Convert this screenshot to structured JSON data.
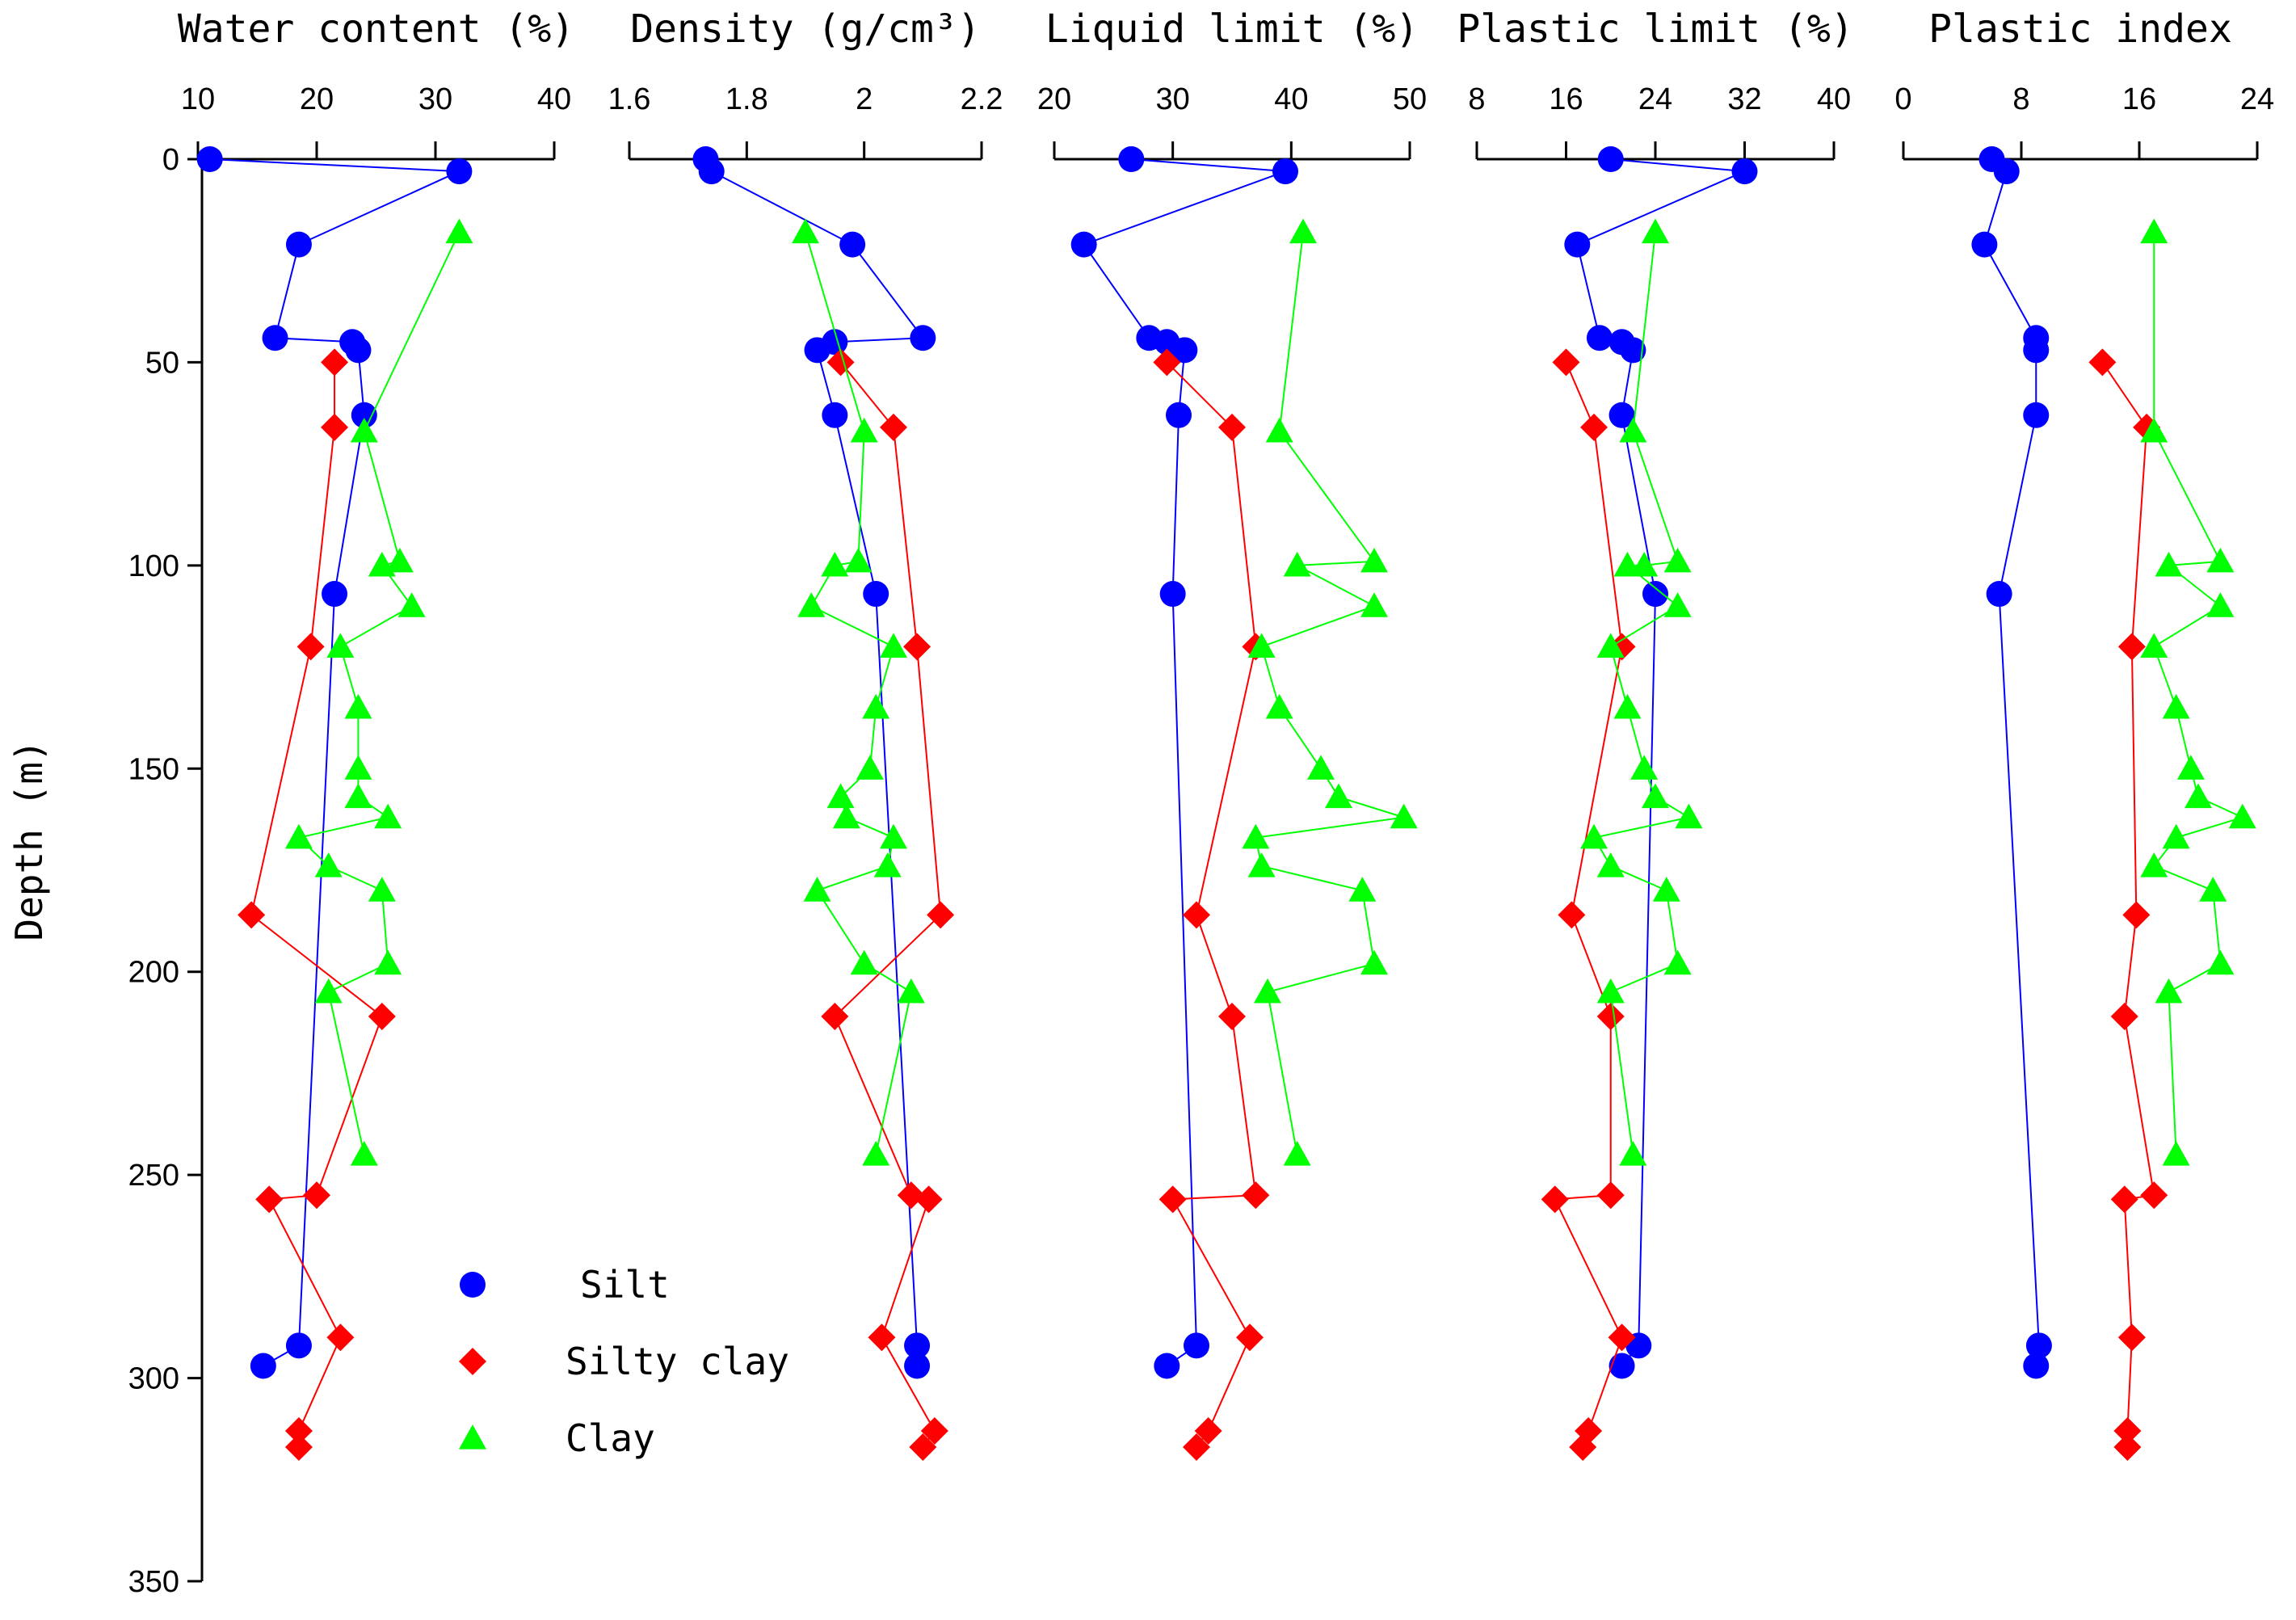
{
  "chart_data": {
    "type": "scatter",
    "layout": "multi-panel profile (shared depth axis)",
    "ylabel": "Depth (m)",
    "ylim": [
      0,
      350
    ],
    "yticks": [
      0,
      50,
      100,
      150,
      200,
      250,
      300,
      350
    ],
    "y_inverted": true,
    "legend": {
      "placement": "bottom-left of first panel",
      "entries": [
        {
          "name": "Silt",
          "marker": "circle",
          "color": "#0000ff"
        },
        {
          "name": "Silty clay",
          "marker": "diamond",
          "color": "#ff0000"
        },
        {
          "name": "Clay",
          "marker": "triangle",
          "color": "#00ff00"
        }
      ]
    },
    "panels": [
      {
        "title": "Water content (%)",
        "xlim": [
          10,
          40
        ],
        "xticks": [
          "10",
          "20",
          "30",
          "40"
        ],
        "series": [
          {
            "name": "Silt",
            "points": [
              [
                11,
                0
              ],
              [
                32,
                3
              ],
              [
                18.5,
                21
              ],
              [
                16.5,
                44
              ],
              [
                23,
                45
              ],
              [
                23.5,
                47
              ],
              [
                24,
                63
              ],
              [
                21.5,
                107
              ],
              [
                18.5,
                292
              ],
              [
                15.5,
                297
              ]
            ]
          },
          {
            "name": "Silty clay",
            "points": [
              [
                21.5,
                50
              ],
              [
                21.5,
                66
              ],
              [
                19.5,
                120
              ],
              [
                14.5,
                186
              ],
              [
                25.5,
                211
              ],
              [
                20,
                255
              ],
              [
                16,
                256
              ],
              [
                22,
                290
              ],
              [
                18.5,
                313
              ],
              [
                18.5,
                317
              ]
            ]
          },
          {
            "name": "Clay",
            "points": [
              [
                32,
                18
              ],
              [
                24,
                67
              ],
              [
                27,
                99
              ],
              [
                25.5,
                100
              ],
              [
                28,
                110
              ],
              [
                22,
                120
              ],
              [
                23.5,
                135
              ],
              [
                23.5,
                150
              ],
              [
                23.5,
                157
              ],
              [
                26,
                162
              ],
              [
                18.5,
                167
              ],
              [
                21,
                174
              ],
              [
                25.5,
                180
              ],
              [
                26,
                198
              ],
              [
                21,
                205
              ],
              [
                24,
                245
              ]
            ]
          }
        ]
      },
      {
        "title": "Density (g/cm³)",
        "xlim": [
          1.6,
          2.2
        ],
        "xticks": [
          "1.6",
          "1.8",
          "2",
          "2.2"
        ],
        "series": [
          {
            "name": "Silt",
            "points": [
              [
                1.73,
                0
              ],
              [
                1.74,
                3
              ],
              [
                1.98,
                21
              ],
              [
                2.1,
                44
              ],
              [
                1.95,
                45
              ],
              [
                1.92,
                47
              ],
              [
                1.95,
                63
              ],
              [
                2.02,
                107
              ],
              [
                2.09,
                292
              ],
              [
                2.09,
                297
              ]
            ]
          },
          {
            "name": "Silty clay",
            "points": [
              [
                1.96,
                50
              ],
              [
                2.05,
                66
              ],
              [
                2.09,
                120
              ],
              [
                2.13,
                186
              ],
              [
                1.95,
                211
              ],
              [
                2.08,
                255
              ],
              [
                2.11,
                256
              ],
              [
                2.03,
                290
              ],
              [
                2.12,
                313
              ],
              [
                2.1,
                317
              ]
            ]
          },
          {
            "name": "Clay",
            "points": [
              [
                1.9,
                18
              ],
              [
                2,
                67
              ],
              [
                1.99,
                99
              ],
              [
                1.95,
                100
              ],
              [
                1.91,
                110
              ],
              [
                2.05,
                120
              ],
              [
                2.02,
                135
              ],
              [
                2.01,
                150
              ],
              [
                1.96,
                157
              ],
              [
                1.97,
                162
              ],
              [
                2.05,
                167
              ],
              [
                2.04,
                174
              ],
              [
                1.92,
                180
              ],
              [
                2,
                198
              ],
              [
                2.08,
                205
              ],
              [
                2.02,
                245
              ]
            ]
          }
        ]
      },
      {
        "title": "Liquid limit (%)",
        "xlim": [
          20,
          50
        ],
        "xticks": [
          "20",
          "30",
          "40",
          "50"
        ],
        "series": [
          {
            "name": "Silt",
            "points": [
              [
                26.5,
                0
              ],
              [
                39.5,
                3
              ],
              [
                22.5,
                21
              ],
              [
                28,
                44
              ],
              [
                29.5,
                45
              ],
              [
                31,
                47
              ],
              [
                30.5,
                63
              ],
              [
                30,
                107
              ],
              [
                32,
                292
              ],
              [
                29.5,
                297
              ]
            ]
          },
          {
            "name": "Silty clay",
            "points": [
              [
                29.5,
                50
              ],
              [
                35,
                66
              ],
              [
                37,
                120
              ],
              [
                32,
                186
              ],
              [
                35,
                211
              ],
              [
                37,
                255
              ],
              [
                30,
                256
              ],
              [
                36.5,
                290
              ],
              [
                33,
                313
              ],
              [
                32,
                317
              ]
            ]
          },
          {
            "name": "Clay",
            "points": [
              [
                41,
                18
              ],
              [
                39,
                67
              ],
              [
                47,
                99
              ],
              [
                40.5,
                100
              ],
              [
                47,
                110
              ],
              [
                37.5,
                120
              ],
              [
                39,
                135
              ],
              [
                42.5,
                150
              ],
              [
                44,
                157
              ],
              [
                49.5,
                162
              ],
              [
                37,
                167
              ],
              [
                37.5,
                174
              ],
              [
                46,
                180
              ],
              [
                47,
                198
              ],
              [
                38,
                205
              ],
              [
                40.5,
                245
              ]
            ]
          }
        ]
      },
      {
        "title": "Plastic limit (%)",
        "xlim": [
          8,
          40
        ],
        "xticks": [
          "8",
          "16",
          "24",
          "32",
          "40"
        ],
        "series": [
          {
            "name": "Silt",
            "points": [
              [
                20,
                0
              ],
              [
                32,
                3
              ],
              [
                17,
                21
              ],
              [
                19,
                44
              ],
              [
                21,
                45
              ],
              [
                22,
                47
              ],
              [
                21,
                63
              ],
              [
                24,
                107
              ],
              [
                22.5,
                292
              ],
              [
                21,
                297
              ]
            ]
          },
          {
            "name": "Silty clay",
            "points": [
              [
                16,
                50
              ],
              [
                18.5,
                66
              ],
              [
                21,
                120
              ],
              [
                16.5,
                186
              ],
              [
                20,
                211
              ],
              [
                20,
                255
              ],
              [
                15,
                256
              ],
              [
                21,
                290
              ],
              [
                18,
                313
              ],
              [
                17.5,
                317
              ]
            ]
          },
          {
            "name": "Clay",
            "points": [
              [
                24,
                18
              ],
              [
                22,
                67
              ],
              [
                26,
                99
              ],
              [
                23,
                100
              ],
              [
                21.5,
                100
              ],
              [
                26,
                110
              ],
              [
                20,
                120
              ],
              [
                21.5,
                135
              ],
              [
                23,
                150
              ],
              [
                24,
                157
              ],
              [
                27,
                162
              ],
              [
                18.5,
                167
              ],
              [
                20,
                174
              ],
              [
                25,
                180
              ],
              [
                26,
                198
              ],
              [
                20,
                205
              ],
              [
                22,
                245
              ]
            ]
          }
        ]
      },
      {
        "title": "Plastic index",
        "xlim": [
          0,
          24
        ],
        "xticks": [
          "0",
          "8",
          "16",
          "24"
        ],
        "series": [
          {
            "name": "Silt",
            "points": [
              [
                6,
                0
              ],
              [
                7,
                3
              ],
              [
                5.5,
                21
              ],
              [
                9,
                44
              ],
              [
                9,
                47
              ],
              [
                9,
                63
              ],
              [
                6.5,
                107
              ],
              [
                9.2,
                292
              ],
              [
                9,
                297
              ]
            ]
          },
          {
            "name": "Silty clay",
            "points": [
              [
                13.5,
                50
              ],
              [
                16.5,
                66
              ],
              [
                15.5,
                120
              ],
              [
                15.8,
                186
              ],
              [
                15,
                211
              ],
              [
                17,
                255
              ],
              [
                15,
                256
              ],
              [
                15.5,
                290
              ],
              [
                15.2,
                313
              ],
              [
                15.2,
                317
              ]
            ]
          },
          {
            "name": "Clay",
            "points": [
              [
                17,
                18
              ],
              [
                17,
                67
              ],
              [
                21.5,
                99
              ],
              [
                18,
                100
              ],
              [
                21.5,
                110
              ],
              [
                17,
                120
              ],
              [
                18.5,
                135
              ],
              [
                19.5,
                150
              ],
              [
                20,
                157
              ],
              [
                23,
                162
              ],
              [
                18.5,
                167
              ],
              [
                17,
                174
              ],
              [
                21,
                180
              ],
              [
                21.5,
                198
              ],
              [
                18,
                205
              ],
              [
                18.5,
                245
              ]
            ]
          }
        ]
      }
    ]
  }
}
